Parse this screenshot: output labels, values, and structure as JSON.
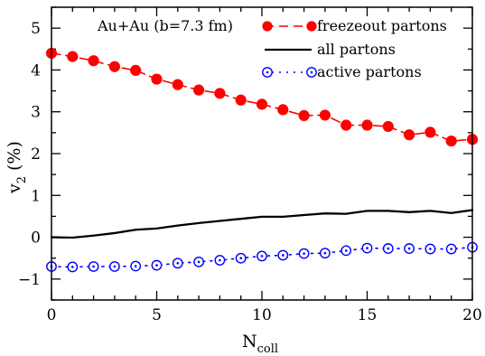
{
  "chart_data": {
    "type": "line",
    "annotation": "Au+Au (b=7.3 fm)",
    "xlabel": {
      "main": "N",
      "sub": "coll"
    },
    "ylabel": {
      "main": "v",
      "sub": "2",
      "suffix": "(%)"
    },
    "xlim": [
      0,
      20
    ],
    "ylim": [
      -1.5,
      5.5
    ],
    "xticks": [
      0,
      5,
      10,
      15,
      20
    ],
    "yticks": [
      -1,
      0,
      1,
      2,
      3,
      4,
      5
    ],
    "x_minor_step": 1,
    "y_minor_step": 0.5,
    "legend_position": "top-right",
    "series": [
      {
        "name": "freezeout partons",
        "color": "#ff0000",
        "line": "dashed",
        "marker": "filled-circle",
        "x": [
          0,
          1,
          2,
          3,
          4,
          5,
          6,
          7,
          8,
          9,
          10,
          11,
          12,
          13,
          14,
          15,
          16,
          17,
          18,
          19,
          20
        ],
        "y": [
          4.4,
          4.32,
          4.22,
          4.08,
          3.99,
          3.78,
          3.65,
          3.52,
          3.44,
          3.28,
          3.18,
          3.05,
          2.91,
          2.92,
          2.68,
          2.68,
          2.65,
          2.45,
          2.51,
          2.3,
          2.34
        ]
      },
      {
        "name": "all partons",
        "color": "#000000",
        "line": "solid",
        "marker": "none",
        "x": [
          0,
          1,
          2,
          3,
          4,
          5,
          6,
          7,
          8,
          9,
          10,
          11,
          12,
          13,
          14,
          15,
          16,
          17,
          18,
          19,
          20
        ],
        "y": [
          0.0,
          -0.01,
          0.04,
          0.1,
          0.18,
          0.21,
          0.28,
          0.34,
          0.39,
          0.44,
          0.49,
          0.49,
          0.53,
          0.57,
          0.56,
          0.63,
          0.63,
          0.6,
          0.63,
          0.58,
          0.65
        ]
      },
      {
        "name": "active partons",
        "color": "#0000ff",
        "line": "dotted",
        "marker": "open-circle-dot",
        "x": [
          0,
          1,
          2,
          3,
          4,
          5,
          6,
          7,
          8,
          9,
          10,
          11,
          12,
          13,
          14,
          15,
          16,
          17,
          18,
          19,
          20
        ],
        "y": [
          -0.7,
          -0.71,
          -0.7,
          -0.7,
          -0.69,
          -0.67,
          -0.62,
          -0.59,
          -0.55,
          -0.5,
          -0.45,
          -0.43,
          -0.39,
          -0.38,
          -0.32,
          -0.26,
          -0.27,
          -0.27,
          -0.28,
          -0.28,
          -0.24
        ]
      }
    ]
  }
}
